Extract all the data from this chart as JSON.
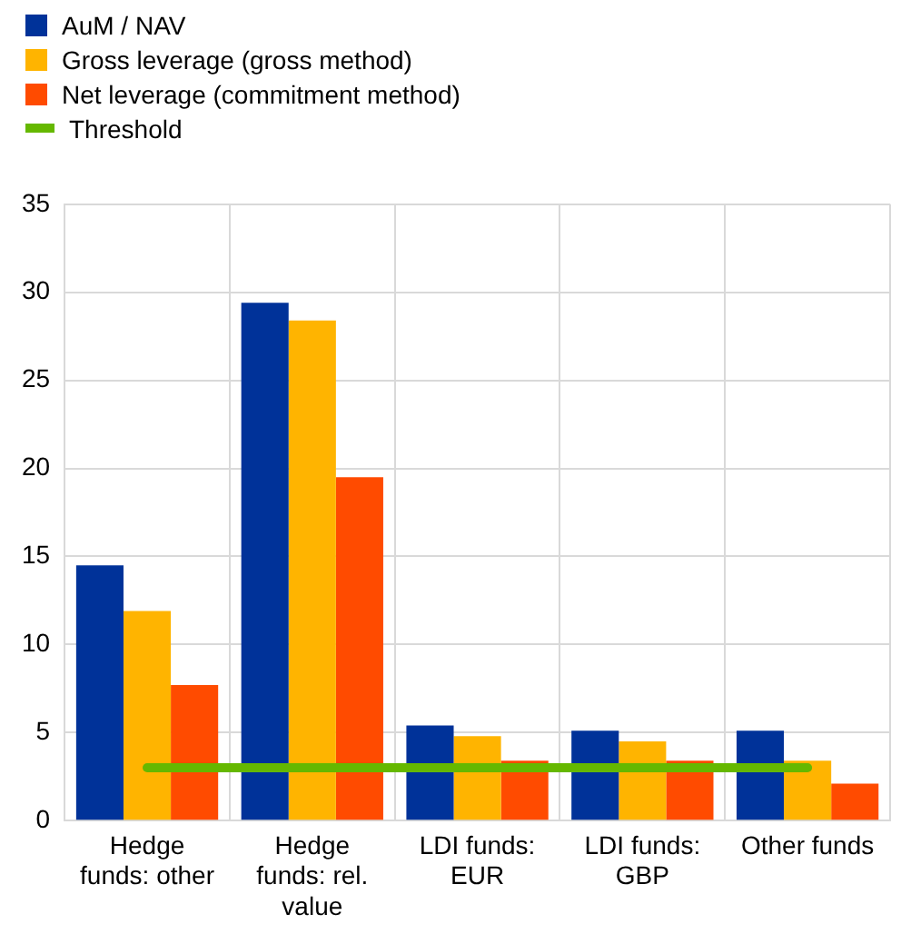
{
  "chart_data": {
    "type": "bar",
    "categories": [
      "Hedge funds: other",
      "Hedge funds: rel. value",
      "LDI funds: EUR",
      "LDI funds: GBP",
      "Other funds"
    ],
    "series": [
      {
        "name": "AuM / NAV",
        "color": "#003299",
        "values": [
          14.5,
          29.4,
          5.4,
          5.1,
          5.1
        ]
      },
      {
        "name": "Gross leverage (gross method)",
        "color": "#ffb400",
        "values": [
          11.9,
          28.4,
          4.8,
          4.5,
          3.4
        ]
      },
      {
        "name": "Net leverage (commitment method)",
        "color": "#ff4b00",
        "values": [
          7.7,
          19.5,
          3.4,
          3.4,
          2.1
        ]
      },
      {
        "name": "Threshold",
        "color": "#65b800",
        "type": "line",
        "values": [
          3,
          3,
          3,
          3,
          3
        ]
      }
    ],
    "ylim": [
      0,
      35
    ],
    "yticks": [
      0,
      5,
      10,
      15,
      20,
      25,
      30,
      35
    ],
    "grid": true,
    "legend": "top left",
    "marker": "none"
  }
}
